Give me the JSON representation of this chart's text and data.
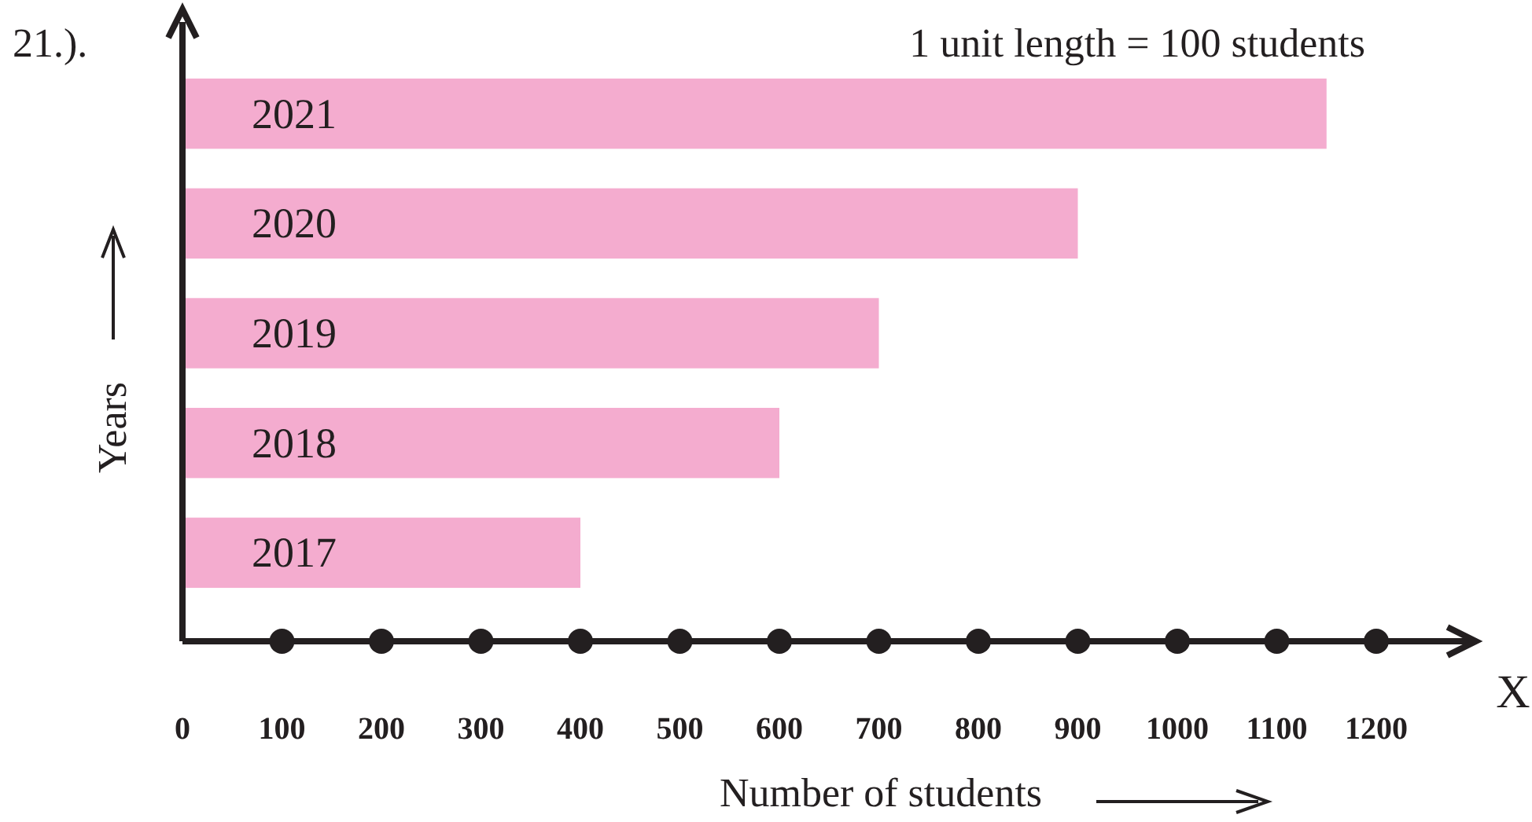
{
  "chart_data": {
    "type": "bar",
    "orientation": "horizontal",
    "xlabel": "Number of students",
    "ylabel": "Years",
    "categories": [
      "2021",
      "2020",
      "2019",
      "2018",
      "2017"
    ],
    "values": [
      1150,
      900,
      700,
      600,
      400
    ],
    "color": "#f4accf",
    "xlim": [
      0,
      1300
    ],
    "xticks": [
      0,
      100,
      200,
      300,
      400,
      500,
      600,
      700,
      800,
      900,
      1000,
      1100,
      1200
    ],
    "grid": false,
    "annotations": [
      "21.).",
      "1 unit length = 100 students",
      "X"
    ]
  }
}
